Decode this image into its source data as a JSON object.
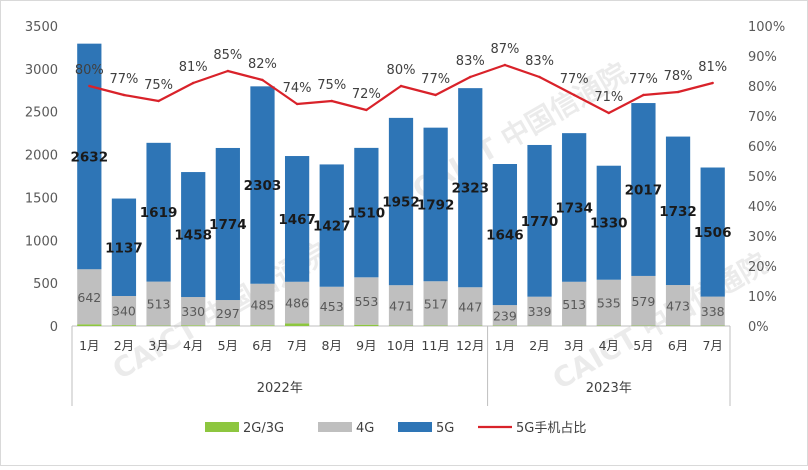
{
  "chart_data": {
    "type": "bar",
    "categories": [
      "1月",
      "2月",
      "3月",
      "4月",
      "5月",
      "6月",
      "7月",
      "8月",
      "9月",
      "10月",
      "11月",
      "12月",
      "1月",
      "2月",
      "3月",
      "4月",
      "5月",
      "6月",
      "7月"
    ],
    "groups": [
      {
        "label": "2022年",
        "count": 12
      },
      {
        "label": "2023年",
        "count": 7
      }
    ],
    "series": [
      {
        "name": "2G/3G",
        "kind": "bar",
        "color": "#8dc63f",
        "values": [
          20,
          10,
          5,
          8,
          6,
          8,
          30,
          5,
          15,
          5,
          5,
          5,
          5,
          3,
          3,
          5,
          5,
          5,
          5
        ]
      },
      {
        "name": "4G",
        "kind": "bar",
        "color": "#bfbfbf",
        "values": [
          642,
          340,
          513,
          330,
          297,
          485,
          486,
          453,
          553,
          471,
          517,
          447,
          239,
          339,
          513,
          535,
          579,
          473,
          338
        ]
      },
      {
        "name": "5G",
        "kind": "bar",
        "color": "#2e75b6",
        "values": [
          2632,
          1137,
          1619,
          1458,
          1774,
          2303,
          1467,
          1427,
          1510,
          1952,
          1792,
          2323,
          1646,
          1770,
          1734,
          1330,
          2017,
          1732,
          1506
        ]
      },
      {
        "name": "5G手机占比",
        "kind": "line",
        "axis": "right",
        "color": "#d9222a",
        "values": [
          80,
          77,
          75,
          81,
          85,
          82,
          74,
          75,
          72,
          80,
          77,
          83,
          87,
          83,
          77,
          71,
          77,
          78,
          81
        ]
      }
    ],
    "labels_4g": [
      "642",
      "340",
      "513",
      "330",
      "297",
      "485",
      "486",
      "453",
      "553",
      "471",
      "517",
      "447",
      "239",
      "339",
      "513",
      "535",
      "579",
      "473",
      "338"
    ],
    "labels_5g": [
      "2632",
      "1137",
      "1619",
      "1458",
      "1774",
      "2303",
      "1467",
      "1427",
      "1510",
      "1952",
      "1792",
      "2323",
      "1646",
      "1770",
      "1734",
      "1330",
      "2017",
      "1732",
      "1506"
    ],
    "labels_pct": [
      "80%",
      "77%",
      "75%",
      "81%",
      "85%",
      "82%",
      "74%",
      "75%",
      "72%",
      "80%",
      "77%",
      "83%",
      "87%",
      "83%",
      "77%",
      "71%",
      "77%",
      "78%",
      "81%"
    ],
    "ylim": [
      0,
      3500
    ],
    "y_ticks": [
      "0",
      "500",
      "1000",
      "1500",
      "2000",
      "2500",
      "3000",
      "3500"
    ],
    "y2lim": [
      0,
      100
    ],
    "y2_ticks": [
      "0%",
      "10%",
      "20%",
      "30%",
      "40%",
      "50%",
      "60%",
      "70%",
      "80%",
      "90%",
      "100%"
    ],
    "grid": false,
    "legend_position": "bottom",
    "watermark": "CAICT 中国信通院"
  }
}
